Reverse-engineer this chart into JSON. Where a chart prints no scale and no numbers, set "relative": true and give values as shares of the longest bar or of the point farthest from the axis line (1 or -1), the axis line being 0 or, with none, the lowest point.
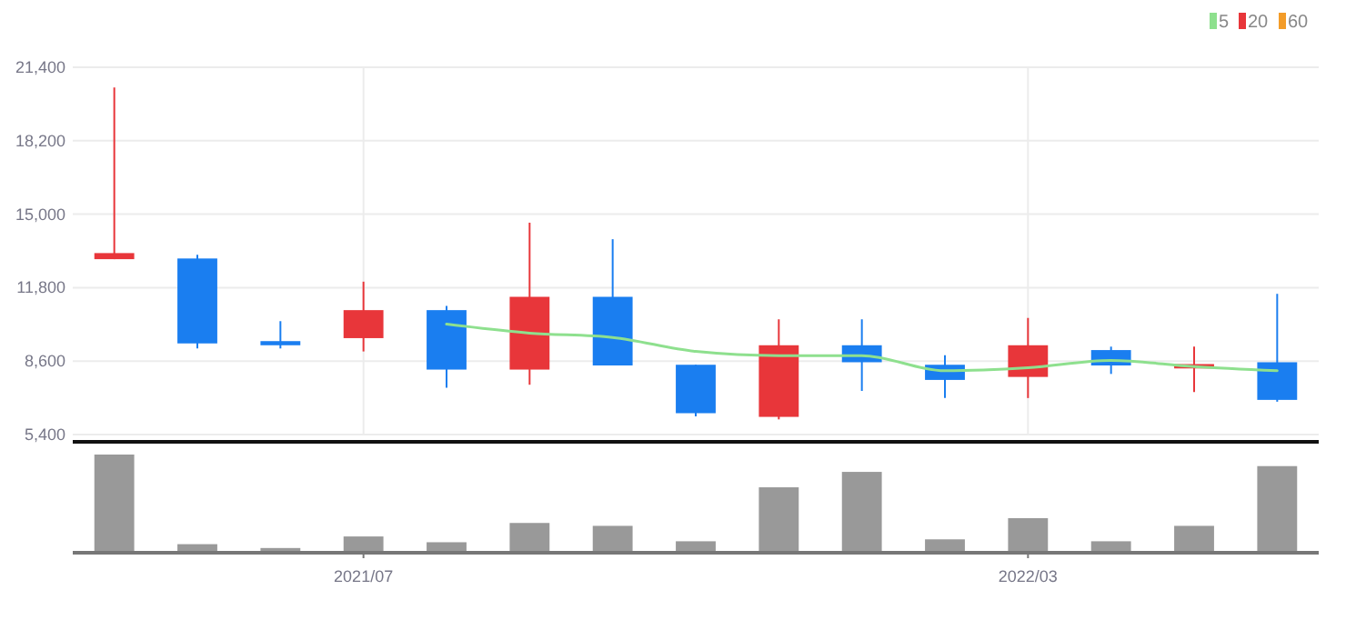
{
  "chart_data": [
    {
      "type": "candlestick",
      "categories": [
        null,
        null,
        null,
        "2021/07",
        null,
        null,
        null,
        null,
        null,
        null,
        null,
        "2022/03",
        null,
        null,
        null
      ],
      "ohlc": [
        [
          13040,
          20520,
          13040,
          13305
        ],
        [
          13070,
          13230,
          9150,
          9370
        ],
        [
          9470,
          10340,
          9150,
          9290
        ],
        [
          9600,
          12060,
          9020,
          10820
        ],
        [
          10820,
          11000,
          7440,
          8230
        ],
        [
          8230,
          14630,
          7570,
          11400
        ],
        [
          11400,
          13910,
          8410,
          8410
        ],
        [
          8440,
          8440,
          6190,
          6330
        ],
        [
          6170,
          10420,
          6060,
          9290
        ],
        [
          9290,
          10420,
          7300,
          8550
        ],
        [
          8440,
          8860,
          6990,
          7780
        ],
        [
          7910,
          10480,
          6990,
          9290
        ],
        [
          9080,
          9230,
          8040,
          8410
        ],
        [
          8280,
          9230,
          7250,
          8470
        ],
        [
          8550,
          11530,
          6830,
          6910
        ]
      ],
      "colors": [
        "#e8363a",
        "#1a7ef0",
        "#1a7ef0",
        "#e8363a",
        "#1a7ef0",
        "#e8363a",
        "#1a7ef0",
        "#1a7ef0",
        "#e8363a",
        "#1a7ef0",
        "#1a7ef0",
        "#e8363a",
        "#1a7ef0",
        "#e8363a",
        "#1a7ef0"
      ],
      "series": [
        {
          "name": "5",
          "type": "line",
          "color": "#8ee08e",
          "values": [
            null,
            null,
            null,
            null,
            10210,
            9820,
            9630,
            9020,
            8840,
            8840,
            8180,
            8310,
            8630,
            8360,
            8180
          ]
        },
        {
          "name": "20",
          "type": "line",
          "color": "#e8363a",
          "values": [
            null,
            null,
            null,
            null,
            null,
            null,
            null,
            null,
            null,
            null,
            null,
            null,
            null,
            null,
            null
          ]
        },
        {
          "name": "60",
          "type": "line",
          "color": "#f39c28",
          "values": [
            null,
            null,
            null,
            null,
            null,
            null,
            null,
            null,
            null,
            null,
            null,
            null,
            null,
            null,
            null
          ]
        }
      ],
      "ylim": [
        5400,
        21400
      ],
      "yticks": [
        {
          "value": 5400,
          "label": "5,400"
        },
        {
          "value": 8600,
          "label": "8,600"
        },
        {
          "value": 11800,
          "label": "11,800"
        },
        {
          "value": 15000,
          "label": "15,000"
        },
        {
          "value": 18200,
          "label": "18,200"
        },
        {
          "value": 21400,
          "label": "21,400"
        }
      ],
      "grid": true,
      "legend": "top right",
      "tick_labels": "y"
    },
    {
      "type": "bar",
      "relative": true,
      "categories": [
        null,
        null,
        null,
        "2021/07",
        null,
        null,
        null,
        null,
        null,
        null,
        null,
        "2022/03",
        null,
        null,
        null
      ],
      "values": [
        1,
        0.07,
        0.03,
        0.15,
        0.09,
        0.29,
        0.26,
        0.1,
        0.66,
        0.82,
        0.12,
        0.34,
        0.1,
        0.26,
        0.88
      ],
      "color": "#999999",
      "tick_labels": "x"
    }
  ]
}
